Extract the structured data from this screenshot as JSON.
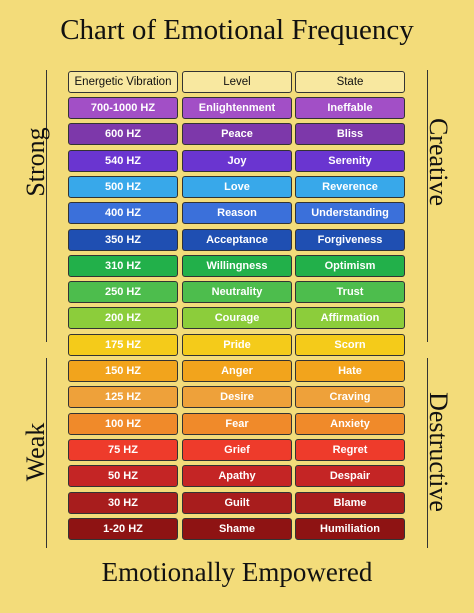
{
  "header": {
    "title": "Chart of Emotional Frequency"
  },
  "side_labels": {
    "left": [
      "Strong",
      "Weak"
    ],
    "right": [
      "Creative",
      "Destructive"
    ]
  },
  "table": {
    "columns": [
      "Energetic Vibration",
      "Level",
      "State"
    ],
    "rows": [
      [
        "700-1000 HZ",
        "Enlightenment",
        "Ineffable"
      ],
      [
        "600 HZ",
        "Peace",
        "Bliss"
      ],
      [
        "540 HZ",
        "Joy",
        "Serenity"
      ],
      [
        "500 HZ",
        "Love",
        "Reverence"
      ],
      [
        "400 HZ",
        "Reason",
        "Understanding"
      ],
      [
        "350 HZ",
        "Acceptance",
        "Forgiveness"
      ],
      [
        "310 HZ",
        "Willingness",
        "Optimism"
      ],
      [
        "250 HZ",
        "Neutrality",
        "Trust"
      ],
      [
        "200 HZ",
        "Courage",
        "Affirmation"
      ],
      [
        "175 HZ",
        "Pride",
        "Scorn"
      ],
      [
        "150 HZ",
        "Anger",
        "Hate"
      ],
      [
        "125 HZ",
        "Desire",
        "Craving"
      ],
      [
        "100 HZ",
        "Fear",
        "Anxiety"
      ],
      [
        "75 HZ",
        "Grief",
        "Regret"
      ],
      [
        "50 HZ",
        "Apathy",
        "Despair"
      ],
      [
        "30 HZ",
        "Guilt",
        "Blame"
      ],
      [
        "1-20 HZ",
        "Shame",
        "Humiliation"
      ]
    ],
    "row_colors": [
      "#a24fc6",
      "#7d38aa",
      "#6a35d0",
      "#38a8ea",
      "#3b70da",
      "#1f4fb2",
      "#22b04a",
      "#4dbd4d",
      "#8ccd3b",
      "#f4cb1a",
      "#f2a41c",
      "#eea13a",
      "#f08a2a",
      "#ee3b2b",
      "#c42525",
      "#a81d1d",
      "#8e1313"
    ]
  },
  "footer": "Emotionally Empowered"
}
